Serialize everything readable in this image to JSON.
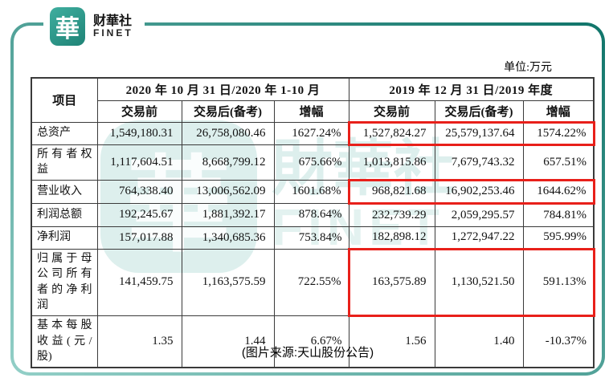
{
  "colors": {
    "accent_teal": "#279a8c",
    "highlight_red": "#e8201a"
  },
  "brand": {
    "seal_char": "華",
    "name": "财華社",
    "sub": "FINET"
  },
  "unit_label": "单位:万元",
  "caption": "(图片来源:天山股份公告)",
  "watermark": {
    "seal_char": "華",
    "name": "財華社",
    "sub": "FINET"
  },
  "table": {
    "item_header": "项目",
    "groups": [
      {
        "title": "2020 年 10 月 31 日/2020 年 1-10 月",
        "cols": [
          "交易前",
          "交易后(备考)",
          "增幅"
        ]
      },
      {
        "title": "2019 年 12 月 31 日/2019 年度",
        "cols": [
          "交易前",
          "交易后(备考)",
          "增幅"
        ]
      }
    ],
    "rows": [
      {
        "label": "总资产",
        "values": [
          "1,549,180.31",
          "26,758,080.46",
          "1627.24%",
          "1,527,824.27",
          "25,579,137.64",
          "1574.22%"
        ],
        "highlight_2019": true
      },
      {
        "label": "所有者权益",
        "values": [
          "1,117,604.51",
          "8,668,799.12",
          "675.66%",
          "1,013,815.86",
          "7,679,743.32",
          "657.51%"
        ],
        "highlight_2019": false
      },
      {
        "label": "营业收入",
        "values": [
          "764,338.40",
          "13,006,562.09",
          "1601.68%",
          "968,821.68",
          "16,902,253.46",
          "1644.62%"
        ],
        "highlight_2019": true
      },
      {
        "label": "利润总额",
        "values": [
          "192,245.67",
          "1,881,392.17",
          "878.64%",
          "232,739.29",
          "2,059,295.57",
          "784.81%"
        ],
        "highlight_2019": false
      },
      {
        "label": "净利润",
        "values": [
          "157,017.88",
          "1,340,685.36",
          "753.84%",
          "182,898.12",
          "1,272,947.22",
          "595.99%"
        ],
        "highlight_2019": false
      },
      {
        "label": "归属于母公司所有者的净利润",
        "values": [
          "141,459.75",
          "1,163,575.59",
          "722.55%",
          "163,575.89",
          "1,130,521.50",
          "591.13%"
        ],
        "highlight_2019": true
      },
      {
        "label": "基本每股收益(元/股)",
        "values": [
          "1.35",
          "1.44",
          "6.67%",
          "1.56",
          "1.40",
          "-10.37%"
        ],
        "highlight_2019": false
      }
    ]
  }
}
